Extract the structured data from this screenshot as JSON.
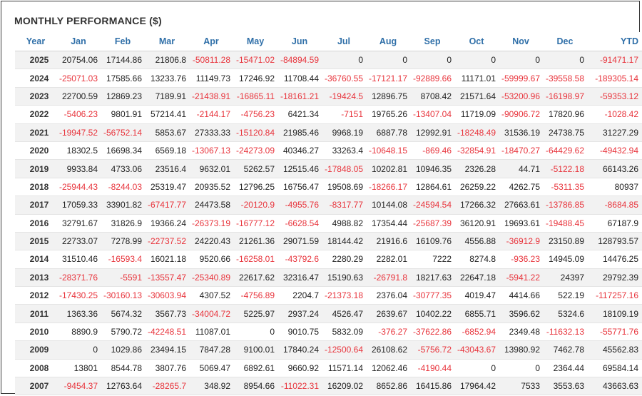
{
  "title": "MONTHLY PERFORMANCE ($)",
  "columns": [
    "Year",
    "Jan",
    "Feb",
    "Mar",
    "Apr",
    "May",
    "Jun",
    "Jul",
    "Aug",
    "Sep",
    "Oct",
    "Nov",
    "Dec",
    "YTD"
  ],
  "colors": {
    "header_text": "#2f6fa8",
    "negative": "#e8343c",
    "stripe": "#f2f2f2"
  },
  "rows": [
    [
      "2025",
      "20754.06",
      "17144.86",
      "21806.8",
      "-50811.28",
      "-15471.02",
      "-84894.59",
      "0",
      "0",
      "0",
      "0",
      "0",
      "0",
      "-91471.17"
    ],
    [
      "2024",
      "-25071.03",
      "17585.66",
      "13233.76",
      "11149.73",
      "17246.92",
      "11708.44",
      "-36760.55",
      "-17121.17",
      "-92889.66",
      "11171.01",
      "-59999.67",
      "-39558.58",
      "-189305.14"
    ],
    [
      "2023",
      "22700.59",
      "12869.23",
      "7189.91",
      "-21438.91",
      "-16865.11",
      "-18161.21",
      "-19424.5",
      "12896.75",
      "8708.42",
      "21571.64",
      "-53200.96",
      "-16198.97",
      "-59353.12"
    ],
    [
      "2022",
      "-5406.23",
      "9801.91",
      "57214.41",
      "-2144.17",
      "-4756.23",
      "6421.34",
      "-7151",
      "19765.26",
      "-13407.04",
      "11719.09",
      "-90906.72",
      "17820.96",
      "-1028.42"
    ],
    [
      "2021",
      "-19947.52",
      "-56752.14",
      "5853.67",
      "27333.33",
      "-15120.84",
      "21985.46",
      "9968.19",
      "6887.78",
      "12992.91",
      "-18248.49",
      "31536.19",
      "24738.75",
      "31227.29"
    ],
    [
      "2020",
      "18302.5",
      "16698.34",
      "6569.18",
      "-13067.13",
      "-24273.09",
      "40346.27",
      "33263.4",
      "-10648.15",
      "-869.46",
      "-32854.91",
      "-18470.27",
      "-64429.62",
      "-49432.94"
    ],
    [
      "2019",
      "9933.84",
      "4733.06",
      "23516.4",
      "9632.01",
      "5262.57",
      "12515.46",
      "-17848.05",
      "10202.81",
      "10946.35",
      "2326.28",
      "44.71",
      "-5122.18",
      "66143.26"
    ],
    [
      "2018",
      "-25944.43",
      "-8244.03",
      "25319.47",
      "20935.52",
      "12796.25",
      "16756.47",
      "19508.69",
      "-18266.17",
      "12864.61",
      "26259.22",
      "4262.75",
      "-5311.35",
      "80937"
    ],
    [
      "2017",
      "17059.33",
      "33901.82",
      "-67417.77",
      "24473.58",
      "-20120.9",
      "-4955.76",
      "-8317.77",
      "10144.08",
      "-24594.54",
      "17266.32",
      "27663.61",
      "-13786.85",
      "-8684.85"
    ],
    [
      "2016",
      "32791.67",
      "31826.9",
      "19366.24",
      "-26373.19",
      "-16777.12",
      "-6628.54",
      "4988.82",
      "17354.44",
      "-25687.39",
      "36120.91",
      "19693.61",
      "-19488.45",
      "67187.9"
    ],
    [
      "2015",
      "22733.07",
      "7278.99",
      "-22737.52",
      "24220.43",
      "21261.36",
      "29071.59",
      "18144.42",
      "21916.6",
      "16109.76",
      "4556.88",
      "-36912.9",
      "23150.89",
      "128793.57"
    ],
    [
      "2014",
      "31510.46",
      "-16593.4",
      "16021.18",
      "9520.66",
      "-16258.01",
      "-43792.6",
      "2280.29",
      "2282.01",
      "7222",
      "8274.8",
      "-936.23",
      "14945.09",
      "14476.25"
    ],
    [
      "2013",
      "-28371.76",
      "-5591",
      "-13557.47",
      "-25340.89",
      "22617.62",
      "32316.47",
      "15190.63",
      "-26791.8",
      "18217.63",
      "22647.18",
      "-5941.22",
      "24397",
      "29792.39"
    ],
    [
      "2012",
      "-17430.25",
      "-30160.13",
      "-30603.94",
      "4307.52",
      "-4756.89",
      "2204.7",
      "-21373.18",
      "2376.04",
      "-30777.35",
      "4019.47",
      "4414.66",
      "522.19",
      "-117257.16"
    ],
    [
      "2011",
      "1363.36",
      "5674.32",
      "3567.73",
      "-34004.72",
      "5225.97",
      "2937.24",
      "4526.47",
      "2639.67",
      "10402.22",
      "6855.71",
      "3596.62",
      "5324.6",
      "18109.19"
    ],
    [
      "2010",
      "8890.9",
      "5790.72",
      "-42248.51",
      "11087.01",
      "0",
      "9010.75",
      "5832.09",
      "-376.27",
      "-37622.86",
      "-6852.94",
      "2349.48",
      "-11632.13",
      "-55771.76"
    ],
    [
      "2009",
      "0",
      "1029.86",
      "23494.15",
      "7847.28",
      "9100.01",
      "17840.24",
      "-12500.64",
      "26108.62",
      "-5756.72",
      "-43043.67",
      "13980.92",
      "7462.78",
      "45562.83"
    ],
    [
      "2008",
      "13801",
      "8544.78",
      "3807.76",
      "5069.47",
      "6892.61",
      "9660.92",
      "11571.14",
      "12062.46",
      "-4190.44",
      "0",
      "0",
      "2364.44",
      "69584.14"
    ],
    [
      "2007",
      "-9454.37",
      "12763.64",
      "-28265.7",
      "348.92",
      "8954.66",
      "-11022.31",
      "16209.02",
      "8652.86",
      "16415.86",
      "17964.42",
      "7533",
      "3553.63",
      "43663.63"
    ]
  ]
}
